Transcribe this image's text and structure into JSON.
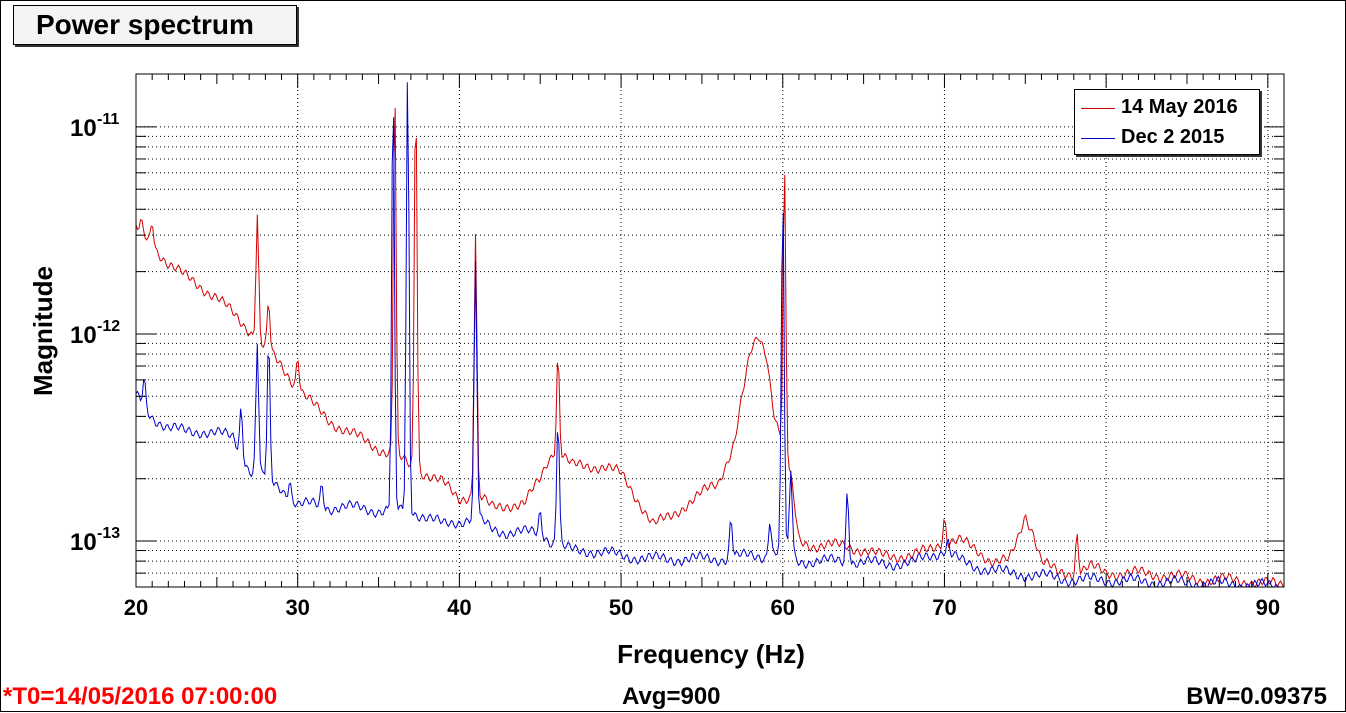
{
  "title": "Power spectrum",
  "footer": {
    "t0": "*T0=14/05/2016 07:00:00",
    "avg": "Avg=900",
    "bw": "BW=0.09375"
  },
  "colors": {
    "series1": "#d40000",
    "series2": "#0000cc",
    "t0_text": "#ff0000"
  },
  "chart_data": {
    "type": "line",
    "xlabel": "Frequency (Hz)",
    "ylabel": "Magnitude",
    "xlim": [
      20,
      91
    ],
    "ylim": [
      6e-14,
      1.8e-11
    ],
    "yscale": "log",
    "grid": true,
    "legend_position": "top-right",
    "x_ticks": [
      20,
      30,
      40,
      50,
      60,
      70,
      80,
      90
    ],
    "y_ticks": [
      {
        "value": 1e-13,
        "base": "10",
        "exp": "-13"
      },
      {
        "value": 1e-12,
        "base": "10",
        "exp": "-12"
      },
      {
        "value": 1e-11,
        "base": "10",
        "exp": "-11"
      }
    ],
    "series": [
      {
        "name": "14 May 2016",
        "color": "#d40000",
        "baseline": [
          [
            20,
            3.2e-12
          ],
          [
            21,
            2.7e-12
          ],
          [
            22,
            2.2e-12
          ],
          [
            23,
            1.9e-12
          ],
          [
            24,
            1.7e-12
          ],
          [
            25,
            1.5e-12
          ],
          [
            26,
            1.25e-12
          ],
          [
            27,
            1.05e-12
          ],
          [
            28,
            8.5e-13
          ],
          [
            29,
            7e-13
          ],
          [
            30,
            5.5e-13
          ],
          [
            31,
            4.5e-13
          ],
          [
            32,
            3.8e-13
          ],
          [
            33,
            3.4e-13
          ],
          [
            34,
            3.1e-13
          ],
          [
            35,
            2.8e-13
          ],
          [
            36,
            2.6e-13
          ],
          [
            37,
            2.3e-13
          ],
          [
            38,
            2.1e-13
          ],
          [
            39,
            1.9e-13
          ],
          [
            40,
            1.6e-13
          ],
          [
            41,
            1.7e-13
          ],
          [
            42,
            1.45e-13
          ],
          [
            43,
            1.5e-13
          ],
          [
            44,
            1.5e-13
          ],
          [
            45,
            2e-13
          ],
          [
            45.5,
            2.5e-13
          ],
          [
            46,
            2.8e-13
          ],
          [
            47,
            2.3e-13
          ],
          [
            48,
            2.3e-13
          ],
          [
            49,
            2.3e-13
          ],
          [
            50,
            2.1e-13
          ],
          [
            51,
            1.6e-13
          ],
          [
            52,
            1.2e-13
          ],
          [
            53,
            1.3e-13
          ],
          [
            54,
            1.5e-13
          ],
          [
            55,
            1.7e-13
          ],
          [
            56,
            1.9e-13
          ],
          [
            57,
            3e-13
          ],
          [
            57.5,
            5e-13
          ],
          [
            58,
            8e-13
          ],
          [
            58.5,
            9.8e-13
          ],
          [
            59,
            8e-13
          ],
          [
            59.5,
            4e-13
          ],
          [
            60,
            3e-13
          ],
          [
            60.5,
            2e-13
          ],
          [
            61,
            1e-13
          ],
          [
            62,
            9.5e-14
          ],
          [
            63,
            9.5e-14
          ],
          [
            64,
            9.5e-14
          ],
          [
            65,
            9e-14
          ],
          [
            66,
            8.5e-14
          ],
          [
            67,
            8.5e-14
          ],
          [
            68,
            8.5e-14
          ],
          [
            69,
            9e-14
          ],
          [
            70,
            1e-13
          ],
          [
            71,
            1e-13
          ],
          [
            72,
            9e-14
          ],
          [
            73,
            8e-14
          ],
          [
            74,
            8e-14
          ],
          [
            74.5,
            1e-13
          ],
          [
            75,
            1.35e-13
          ],
          [
            75.5,
            1.1e-13
          ],
          [
            76,
            8e-14
          ],
          [
            77,
            7e-14
          ],
          [
            78,
            7e-14
          ],
          [
            79,
            7.5e-14
          ],
          [
            80,
            7e-14
          ],
          [
            82,
            7e-14
          ],
          [
            84,
            6.8e-14
          ],
          [
            86,
            6.5e-14
          ],
          [
            88,
            6.5e-14
          ],
          [
            90,
            6.2e-14
          ],
          [
            91,
            6.2e-14
          ]
        ],
        "peaks": [
          [
            20.3,
            3.4e-12
          ],
          [
            21,
            3.5e-12
          ],
          [
            27.5,
            3.8e-12
          ],
          [
            28.2,
            1.4e-12
          ],
          [
            30,
            8e-13
          ],
          [
            36,
            1.6e-11
          ],
          [
            37.3,
            1.6e-11
          ],
          [
            41,
            3.1e-12
          ],
          [
            46.1,
            8e-13
          ],
          [
            60.1,
            6.3e-12
          ],
          [
            70,
            1.3e-13
          ],
          [
            78.2,
            1.1e-13
          ]
        ]
      },
      {
        "name": "Dec 2 2015",
        "color": "#0000cc",
        "baseline": [
          [
            20,
            5e-13
          ],
          [
            21,
            4e-13
          ],
          [
            22,
            3.5e-13
          ],
          [
            23,
            3.4e-13
          ],
          [
            24,
            3.4e-13
          ],
          [
            25,
            3.3e-13
          ],
          [
            26,
            3.2e-13
          ],
          [
            27,
            2.2e-13
          ],
          [
            28,
            2e-13
          ],
          [
            29,
            1.8e-13
          ],
          [
            30,
            1.5e-13
          ],
          [
            31,
            1.5e-13
          ],
          [
            32,
            1.45e-13
          ],
          [
            33,
            1.45e-13
          ],
          [
            34,
            1.45e-13
          ],
          [
            35,
            1.4e-13
          ],
          [
            36,
            1.4e-13
          ],
          [
            37,
            1.4e-13
          ],
          [
            38,
            1.3e-13
          ],
          [
            39,
            1.2e-13
          ],
          [
            40,
            1.25e-13
          ],
          [
            41,
            1.3e-13
          ],
          [
            42,
            1.15e-13
          ],
          [
            43,
            1.1e-13
          ],
          [
            44,
            1.1e-13
          ],
          [
            45,
            1.1e-13
          ],
          [
            46,
            9.5e-14
          ],
          [
            47,
            9e-14
          ],
          [
            48,
            9e-14
          ],
          [
            49,
            8.8e-14
          ],
          [
            50,
            8.5e-14
          ],
          [
            52,
            8.2e-14
          ],
          [
            54,
            8.2e-14
          ],
          [
            56,
            8.2e-14
          ],
          [
            58,
            8.5e-14
          ],
          [
            59,
            8.5e-14
          ],
          [
            60,
            9e-14
          ],
          [
            61,
            8e-14
          ],
          [
            62,
            8e-14
          ],
          [
            64,
            8e-14
          ],
          [
            66,
            7.8e-14
          ],
          [
            68,
            7.8e-14
          ],
          [
            69,
            8.5e-14
          ],
          [
            70,
            9e-14
          ],
          [
            71,
            8e-14
          ],
          [
            72,
            7.5e-14
          ],
          [
            74,
            7e-14
          ],
          [
            76,
            6.8e-14
          ],
          [
            78,
            6.5e-14
          ],
          [
            80,
            6.5e-14
          ],
          [
            84,
            6.3e-14
          ],
          [
            88,
            6.2e-14
          ],
          [
            91,
            6e-14
          ]
        ],
        "peaks": [
          [
            20.5,
            6e-13
          ],
          [
            26.5,
            4.5e-13
          ],
          [
            27.5,
            9e-13
          ],
          [
            28.2,
            9e-13
          ],
          [
            29.5,
            2e-13
          ],
          [
            31.5,
            1.9e-13
          ],
          [
            35.9,
            1.6e-11
          ],
          [
            36.8,
            1.8e-11
          ],
          [
            41,
            2.2e-12
          ],
          [
            45,
            1.4e-13
          ],
          [
            46.1,
            4e-13
          ],
          [
            56.8,
            1.3e-13
          ],
          [
            59.2,
            1.3e-13
          ],
          [
            60,
            5e-12
          ],
          [
            60.5,
            2.2e-13
          ],
          [
            64,
            1.8e-13
          ],
          [
            70.2,
            1e-13
          ]
        ]
      }
    ]
  }
}
